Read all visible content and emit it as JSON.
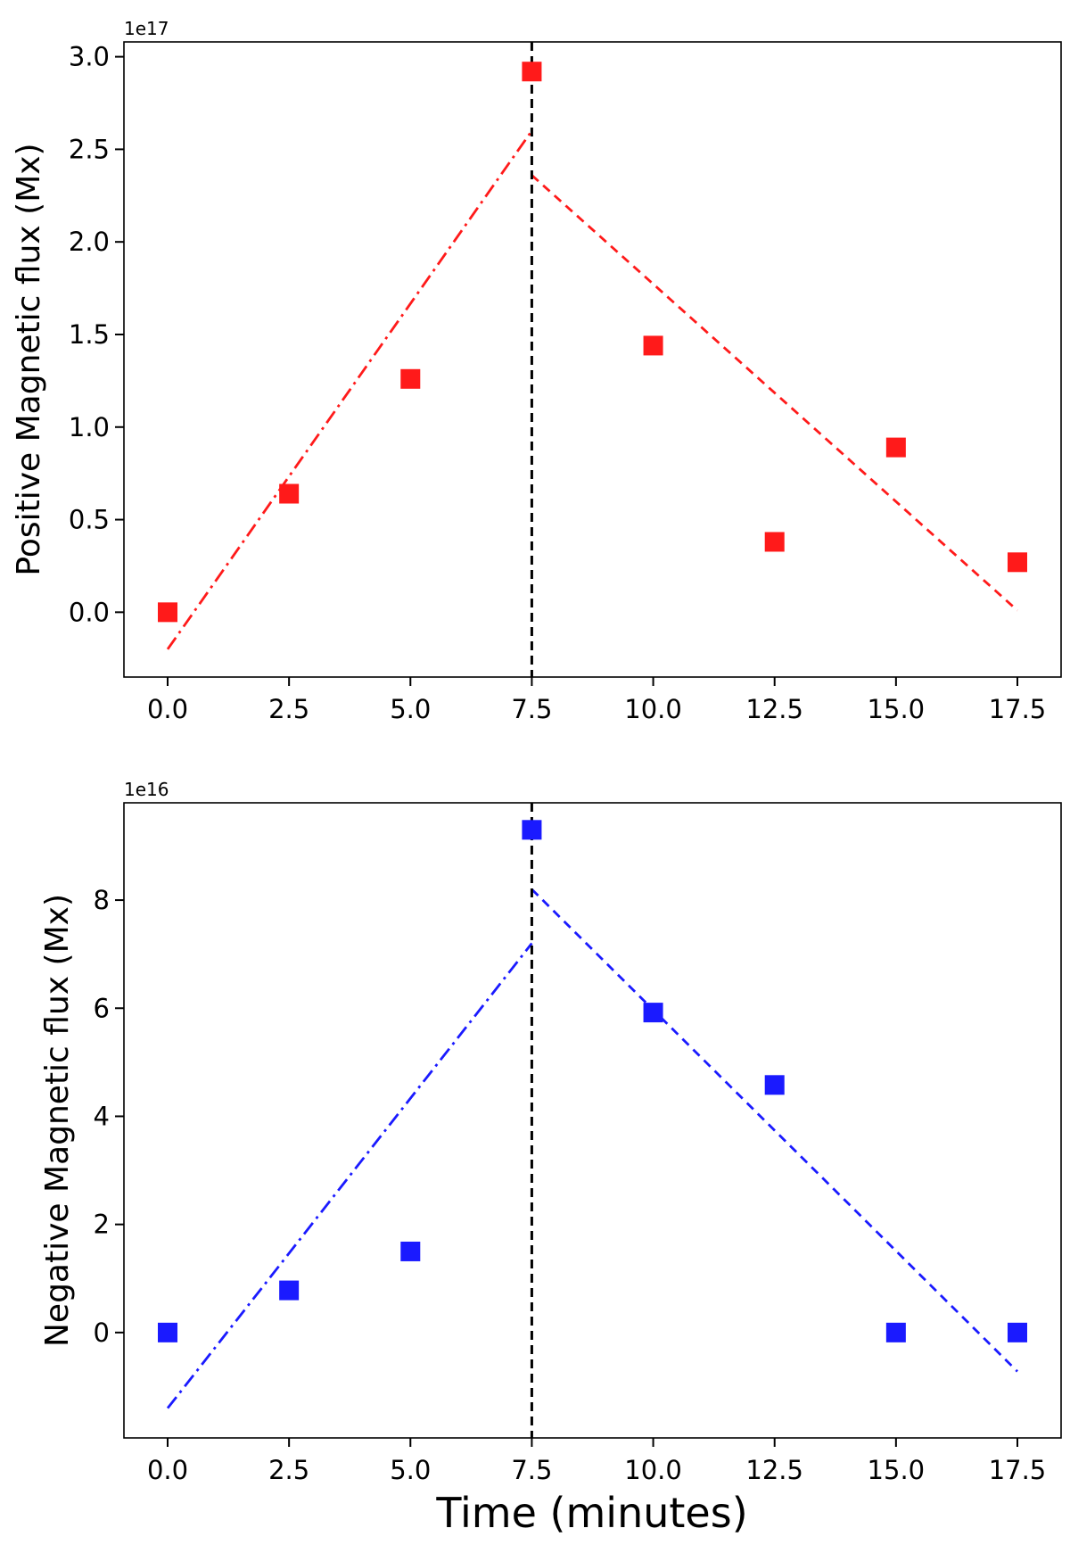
{
  "figure": {
    "xlabel": "Time (minutes)"
  },
  "chart_data": [
    {
      "type": "scatter",
      "ylabel": "Positive Magnetic flux (Mx)",
      "offset_text": "1e17",
      "xlim": [
        -0.9,
        18.4
      ],
      "ylim": [
        -0.35,
        3.08
      ],
      "xticks": [
        0.0,
        2.5,
        5.0,
        7.5,
        10.0,
        12.5,
        15.0,
        17.5
      ],
      "xtick_labels": [
        "0.0",
        "2.5",
        "5.0",
        "7.5",
        "10.0",
        "12.5",
        "15.0",
        "17.5"
      ],
      "yticks": [
        0.0,
        0.5,
        1.0,
        1.5,
        2.0,
        2.5,
        3.0
      ],
      "ytick_labels": [
        "0.0",
        "0.5",
        "1.0",
        "1.5",
        "2.0",
        "2.5",
        "3.0"
      ],
      "color": "#ff1a1a",
      "points": {
        "x": [
          0.0,
          2.5,
          5.0,
          7.5,
          10.0,
          12.5,
          15.0,
          17.5
        ],
        "y": [
          0.0,
          0.64,
          1.26,
          2.92,
          1.44,
          0.38,
          0.89,
          0.27
        ]
      },
      "fit_lines": [
        {
          "style": "dashdot",
          "x": [
            0.0,
            7.5
          ],
          "y": [
            -0.2,
            2.6
          ]
        },
        {
          "style": "dashed",
          "x": [
            7.5,
            17.5
          ],
          "y": [
            2.36,
            0.01
          ]
        }
      ],
      "vline": {
        "x": 7.5,
        "style": "dashed",
        "color": "#000000"
      },
      "grid": false
    },
    {
      "type": "scatter",
      "ylabel": "Negative Magnetic flux (Mx)",
      "offset_text": "1e16",
      "xlim": [
        -0.9,
        18.4
      ],
      "ylim": [
        -1.95,
        9.8
      ],
      "xticks": [
        0.0,
        2.5,
        5.0,
        7.5,
        10.0,
        12.5,
        15.0,
        17.5
      ],
      "xtick_labels": [
        "0.0",
        "2.5",
        "5.0",
        "7.5",
        "10.0",
        "12.5",
        "15.0",
        "17.5"
      ],
      "yticks": [
        0,
        2,
        4,
        6,
        8
      ],
      "ytick_labels": [
        "0",
        "2",
        "4",
        "6",
        "8"
      ],
      "color": "#1a1aff",
      "points": {
        "x": [
          0.0,
          2.5,
          5.0,
          7.5,
          10.0,
          12.5,
          15.0,
          17.5
        ],
        "y": [
          0.0,
          0.78,
          1.5,
          9.3,
          5.92,
          4.58,
          0.0,
          0.0
        ]
      },
      "fit_lines": [
        {
          "style": "dashdot",
          "x": [
            0.0,
            7.5
          ],
          "y": [
            -1.4,
            7.2
          ]
        },
        {
          "style": "dashed",
          "x": [
            7.5,
            17.5
          ],
          "y": [
            8.2,
            -0.72
          ]
        }
      ],
      "vline": {
        "x": 7.5,
        "style": "dashed",
        "color": "#000000"
      },
      "grid": false
    }
  ]
}
